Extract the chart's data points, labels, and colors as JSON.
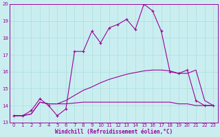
{
  "xlabel": "Windchill (Refroidissement éolien,°C)",
  "bg_color": "#caeef0",
  "grid_color": "#a8dde0",
  "line_color": "#990099",
  "xlim": [
    -0.5,
    23.5
  ],
  "ylim": [
    13,
    20
  ],
  "yticks": [
    13,
    14,
    15,
    16,
    17,
    18,
    19,
    20
  ],
  "xticks": [
    0,
    1,
    2,
    3,
    4,
    5,
    6,
    7,
    8,
    9,
    10,
    11,
    12,
    13,
    14,
    15,
    16,
    17,
    18,
    19,
    20,
    21,
    22,
    23
  ],
  "line1_x": [
    0,
    1,
    2,
    3,
    4,
    5,
    6,
    7,
    8,
    9,
    10,
    11,
    12,
    13,
    14,
    15,
    16,
    17,
    18,
    19,
    20,
    21,
    22,
    23
  ],
  "line1_y": [
    13.4,
    13.4,
    13.7,
    14.4,
    14.0,
    13.4,
    13.8,
    17.2,
    17.2,
    18.4,
    17.7,
    18.6,
    18.8,
    19.1,
    18.5,
    20.0,
    19.6,
    18.4,
    16.0,
    15.9,
    16.1,
    14.3,
    14.0,
    14.0
  ],
  "line2_x": [
    0,
    1,
    2,
    3,
    4,
    5,
    6,
    7,
    8,
    9,
    10,
    11,
    12,
    13,
    14,
    15,
    16,
    17,
    18,
    19,
    20,
    21,
    22,
    23
  ],
  "line2_y": [
    13.4,
    13.4,
    13.5,
    14.2,
    14.1,
    14.1,
    14.1,
    14.15,
    14.2,
    14.2,
    14.2,
    14.2,
    14.2,
    14.2,
    14.2,
    14.2,
    14.2,
    14.2,
    14.2,
    14.1,
    14.1,
    14.0,
    14.0,
    14.0
  ],
  "line3_x": [
    0,
    1,
    2,
    3,
    4,
    5,
    6,
    7,
    8,
    9,
    10,
    11,
    12,
    13,
    14,
    15,
    16,
    17,
    18,
    19,
    20,
    21,
    22,
    23
  ],
  "line3_y": [
    13.4,
    13.4,
    13.5,
    14.2,
    14.1,
    14.1,
    14.3,
    14.6,
    14.9,
    15.1,
    15.35,
    15.55,
    15.7,
    15.85,
    15.95,
    16.05,
    16.1,
    16.1,
    16.05,
    15.9,
    15.9,
    16.1,
    14.3,
    14.0
  ]
}
